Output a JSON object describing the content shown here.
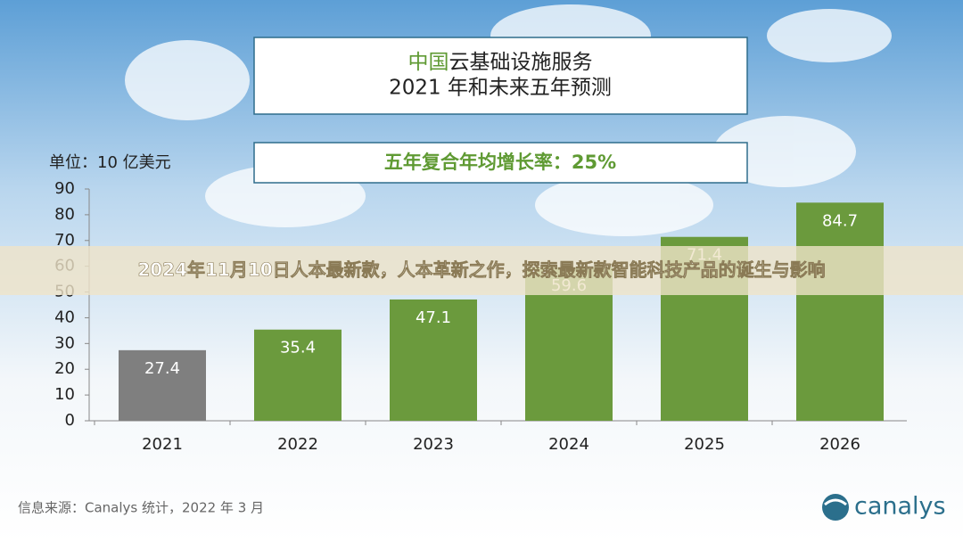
{
  "chart_data": {
    "type": "bar",
    "title_highlight": "中国",
    "title": "云基础设施服务",
    "subtitle": "2021 年和未来五年预测",
    "cagr_note": "五年复合年均增长率：25%",
    "unit_label": "单位：10 亿美元",
    "categories": [
      "2021",
      "2022",
      "2023",
      "2024",
      "2025",
      "2026"
    ],
    "values": [
      27.4,
      35.4,
      47.1,
      59.6,
      71.4,
      84.7
    ],
    "colors": [
      "#7f7f7f",
      "#6b9a3d",
      "#6b9a3d",
      "#6b9a3d",
      "#6b9a3d",
      "#6b9a3d"
    ],
    "ylim": [
      0,
      90
    ],
    "yticks": [
      0,
      10,
      20,
      30,
      40,
      50,
      60,
      70,
      80,
      90
    ],
    "source": "信息来源：Canalys 统计，2022 年 3 月",
    "logo": "canalys"
  },
  "banner": "2024年11月10日人本最新款，人本革新之作，探索最新款智能科技产品的诞生与影响"
}
